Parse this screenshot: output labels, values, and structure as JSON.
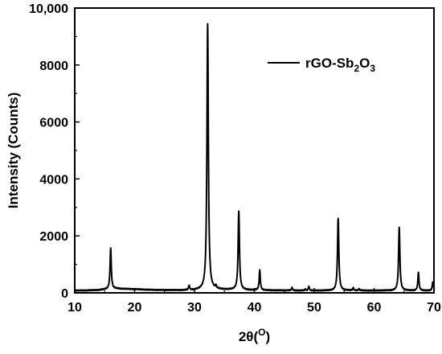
{
  "chart_data": {
    "type": "line",
    "title": "",
    "xlabel": "2θ(O)",
    "xlabel_parts": {
      "main": "2θ(",
      "sup": "O",
      "end": ")"
    },
    "ylabel": "Intensity (Counts)",
    "xlim": [
      10,
      70
    ],
    "ylim": [
      0,
      10000
    ],
    "x_ticks": [
      10,
      20,
      30,
      40,
      50,
      60,
      70
    ],
    "x_tick_labels": [
      "10",
      "20",
      "30",
      "40",
      "50",
      "60",
      "70"
    ],
    "y_ticks": [
      0,
      2000,
      4000,
      6000,
      8000,
      10000
    ],
    "y_tick_labels": [
      "0",
      "2000",
      "4000",
      "6000",
      "8000",
      "10,000"
    ],
    "grid": false,
    "legend_position": "top-right",
    "line_color": "#000000",
    "series": [
      {
        "name": "rGO-Sb2O3",
        "name_parts": {
          "main": "rGO-Sb",
          "sub1": "2",
          "mid": "O",
          "sub2": "3"
        },
        "baseline": [
          [
            10,
            80
          ],
          [
            12,
            85
          ],
          [
            14,
            100
          ],
          [
            15,
            120
          ],
          [
            17,
            150
          ],
          [
            18,
            140
          ],
          [
            20,
            130
          ],
          [
            22,
            110
          ],
          [
            24,
            100
          ],
          [
            26,
            95
          ],
          [
            28,
            90
          ],
          [
            30,
            95
          ],
          [
            31,
            100
          ],
          [
            34,
            110
          ],
          [
            36,
            110
          ],
          [
            38,
            100
          ],
          [
            40,
            95
          ],
          [
            42,
            90
          ],
          [
            44,
            85
          ],
          [
            46,
            85
          ],
          [
            48,
            80
          ],
          [
            50,
            80
          ],
          [
            52,
            80
          ],
          [
            54,
            80
          ],
          [
            56,
            85
          ],
          [
            58,
            80
          ],
          [
            60,
            80
          ],
          [
            62,
            80
          ],
          [
            64,
            80
          ],
          [
            66,
            80
          ],
          [
            68,
            80
          ],
          [
            69.5,
            80
          ],
          [
            70,
            80
          ]
        ],
        "peaks": [
          [
            16.0,
            1580,
            0.12
          ],
          [
            29.1,
            260,
            0.1
          ],
          [
            32.2,
            9450,
            0.14
          ],
          [
            33.6,
            200,
            0.1
          ],
          [
            37.4,
            2880,
            0.13
          ],
          [
            40.9,
            800,
            0.11
          ],
          [
            46.3,
            180,
            0.1
          ],
          [
            48.5,
            120,
            0.1
          ],
          [
            49.1,
            230,
            0.1
          ],
          [
            54.0,
            2620,
            0.13
          ],
          [
            56.5,
            170,
            0.1
          ],
          [
            57.5,
            140,
            0.1
          ],
          [
            64.2,
            2300,
            0.13
          ],
          [
            67.4,
            720,
            0.11
          ],
          [
            69.8,
            380,
            0.1
          ]
        ]
      }
    ]
  }
}
